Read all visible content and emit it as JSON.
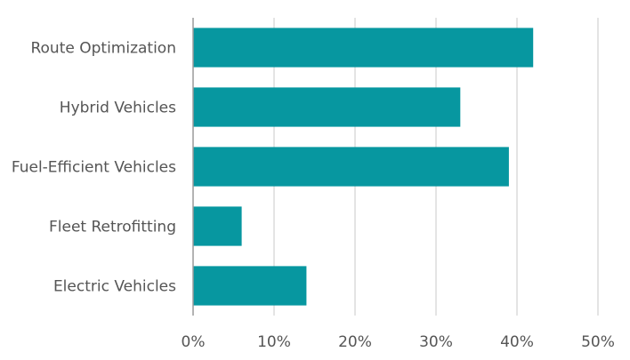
{
  "chart_data": {
    "type": "bar",
    "orientation": "horizontal",
    "categories": [
      "Route Optimization",
      "Hybrid Vehicles",
      "Fuel-Efficient Vehicles",
      "Fleet Retrofitting",
      "Electric Vehicles"
    ],
    "values": [
      42,
      33,
      39,
      6,
      14
    ],
    "xlim": [
      0,
      50
    ],
    "x_ticks": [
      "0%",
      "10%",
      "20%",
      "30%",
      "40%",
      "50%"
    ],
    "title": "",
    "xlabel": "",
    "ylabel": "",
    "grid": "vertical",
    "legend": "none",
    "bar_color": "#0797a0"
  }
}
